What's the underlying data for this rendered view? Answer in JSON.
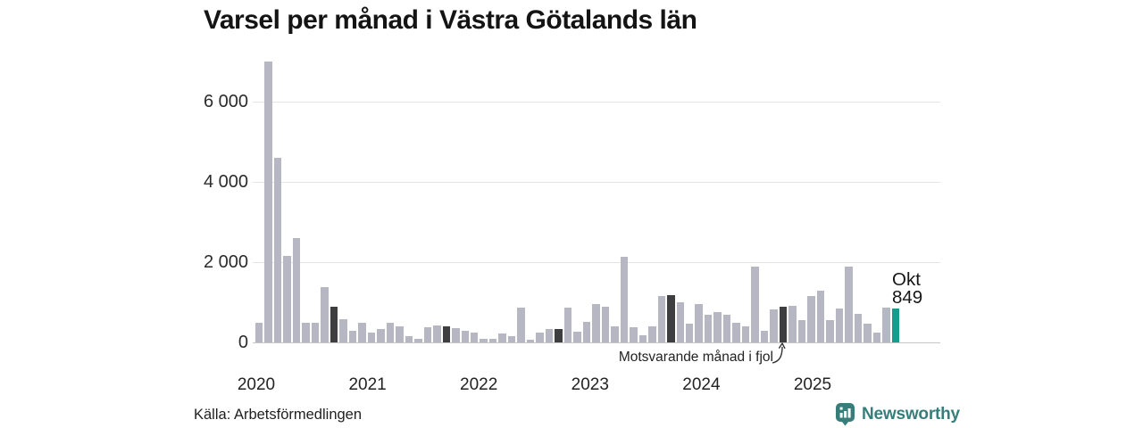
{
  "title": "Varsel per månad i Västra Götalands län",
  "source": "Källa: Arbetsförmedlingen",
  "branding": {
    "name": "Newsworthy",
    "color": "#377e7b"
  },
  "chart_data": {
    "type": "bar",
    "title": "Varsel per månad i Västra Götalands län",
    "start_month": "2020-02",
    "end_month": "2025-10",
    "months": [
      "2020-02",
      "2020-03",
      "2020-04",
      "2020-05",
      "2020-06",
      "2020-07",
      "2020-08",
      "2020-09",
      "2020-10",
      "2020-11",
      "2020-12",
      "2021-01",
      "2021-02",
      "2021-03",
      "2021-04",
      "2021-05",
      "2021-06",
      "2021-07",
      "2021-08",
      "2021-09",
      "2021-10",
      "2021-11",
      "2021-12",
      "2022-01",
      "2022-02",
      "2022-03",
      "2022-04",
      "2022-05",
      "2022-06",
      "2022-07",
      "2022-08",
      "2022-09",
      "2022-10",
      "2022-11",
      "2022-12",
      "2023-01",
      "2023-02",
      "2023-03",
      "2023-04",
      "2023-05",
      "2023-06",
      "2023-07",
      "2023-08",
      "2023-09",
      "2023-10",
      "2023-11",
      "2023-12",
      "2024-01",
      "2024-02",
      "2024-03",
      "2024-04",
      "2024-05",
      "2024-06",
      "2024-07",
      "2024-08",
      "2024-09",
      "2024-10",
      "2024-11",
      "2024-12",
      "2025-01",
      "2025-02",
      "2025-03",
      "2025-04",
      "2025-05",
      "2025-06",
      "2025-07",
      "2025-08",
      "2025-09",
      "2025-10"
    ],
    "values": [
      500,
      7000,
      4600,
      2150,
      2600,
      490,
      480,
      1380,
      880,
      580,
      300,
      500,
      250,
      330,
      480,
      390,
      150,
      90,
      370,
      420,
      400,
      350,
      300,
      240,
      80,
      100,
      220,
      160,
      870,
      60,
      250,
      330,
      330,
      870,
      270,
      510,
      950,
      900,
      400,
      2130,
      370,
      180,
      400,
      1150,
      1180,
      1000,
      470,
      960,
      700,
      750,
      700,
      500,
      400,
      1900,
      300,
      820,
      880,
      920,
      550,
      1150,
      1290,
      550,
      840,
      1900,
      715,
      475,
      235,
      860,
      849
    ],
    "dark_month_indices": [
      8,
      20,
      32,
      44,
      56
    ],
    "current_index": 68,
    "ylim": [
      0,
      7300
    ],
    "yticks": [
      {
        "v": 0,
        "label": "0"
      },
      {
        "v": 2000,
        "label": "2 000"
      },
      {
        "v": 4000,
        "label": "4 000"
      },
      {
        "v": 6000,
        "label": "6 000"
      }
    ],
    "year_labels": [
      "2020",
      "2021",
      "2022",
      "2023",
      "2024",
      "2025"
    ],
    "grid": true,
    "legend": false,
    "annotation": {
      "text": "Motsvarande månad i fjol",
      "target_month": "2024-10"
    },
    "current_point": {
      "label": "Okt",
      "value": "849"
    },
    "colors": {
      "bar": "#b7b6c3",
      "bar_dark": "#3e3d40",
      "bar_current": "#169b8c",
      "grid": "#e4e4e4",
      "axis": "#c6c6c6",
      "text": "#1c1c1c"
    }
  }
}
